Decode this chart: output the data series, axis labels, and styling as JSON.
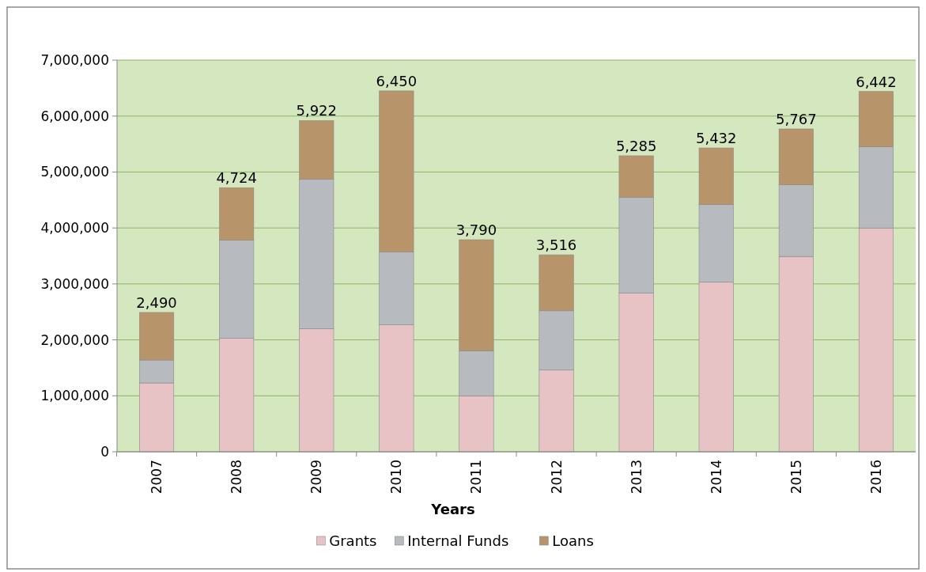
{
  "chart_data": {
    "type": "bar",
    "stacked": true,
    "xlabel": "Years",
    "categories": [
      "2007",
      "2008",
      "2009",
      "2010",
      "2011",
      "2012",
      "2013",
      "2014",
      "2015",
      "2016"
    ],
    "series": [
      {
        "name": "Grants",
        "color": "#e8c3c6",
        "values": [
          1230000,
          2030000,
          2200000,
          2270000,
          1000000,
          1460000,
          2840000,
          3030000,
          3490000,
          4000000
        ]
      },
      {
        "name": "Internal Funds",
        "color": "#b7bbbf",
        "values": [
          410000,
          1750000,
          2670000,
          1300000,
          800000,
          1060000,
          1710000,
          1390000,
          1280000,
          1450000
        ]
      },
      {
        "name": "Loans",
        "color": "#b8946a",
        "values": [
          850000,
          940000,
          1050000,
          2880000,
          1990000,
          1000000,
          740000,
          1010000,
          1000000,
          990000
        ]
      }
    ],
    "annotations": [
      {
        "text": "2,490",
        "x": "2007",
        "y": 2490000
      },
      {
        "text": "4,724",
        "x": "2008",
        "y": 4720000
      },
      {
        "text": "5,922",
        "x": "2009",
        "y": 5920000
      },
      {
        "text": "6,450",
        "x": "2010",
        "y": 6450000
      },
      {
        "text": "3,790",
        "x": "2011",
        "y": 3790000
      },
      {
        "text": "3,516",
        "x": "2012",
        "y": 3520000
      },
      {
        "text": "5,285",
        "x": "2013",
        "y": 5290000
      },
      {
        "text": "5,432",
        "x": "2014",
        "y": 5430000
      },
      {
        "text": "5,767",
        "x": "2015",
        "y": 5770000
      },
      {
        "text": "6,442",
        "x": "2016",
        "y": 6440000
      }
    ],
    "ylim": [
      0,
      7000000
    ],
    "yticks": [
      {
        "value": 0,
        "label": "0"
      },
      {
        "value": 1000000,
        "label": "1,000,000"
      },
      {
        "value": 2000000,
        "label": "2,000,000"
      },
      {
        "value": 3000000,
        "label": "3,000,000"
      },
      {
        "value": 4000000,
        "label": "4,000,000"
      },
      {
        "value": 5000000,
        "label": "5,000,000"
      },
      {
        "value": 6000000,
        "label": "6,000,000"
      },
      {
        "value": 7000000,
        "label": "7,000,000"
      }
    ],
    "grid": "y",
    "legend": "bottom"
  }
}
